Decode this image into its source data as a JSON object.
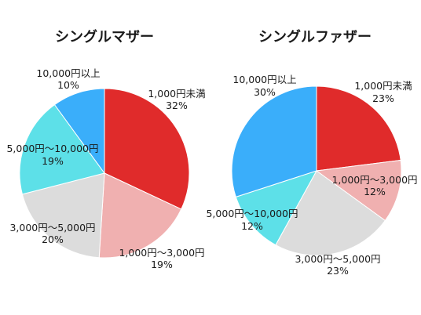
{
  "chart_data": [
    {
      "type": "pie",
      "title": "シングルマザー",
      "categories": [
        "1,000円未満",
        "1,000円〜3,000円",
        "3,000円〜5,000円",
        "5,000円〜10,000円",
        "10,000円以上"
      ],
      "values": [
        32,
        19,
        20,
        19,
        10
      ],
      "value_labels": [
        "32%",
        "19%",
        "20%",
        "19%",
        "10%"
      ],
      "colors": [
        "#e02b2b",
        "#f0b0b0",
        "#dcdcdc",
        "#5de0e8",
        "#3aaefa"
      ]
    },
    {
      "type": "pie",
      "title": "シングルファザー",
      "categories": [
        "1,000円未満",
        "1,000円〜3,000円",
        "3,000円〜5,000円",
        "5,000円〜10,000円",
        "10,000円以上"
      ],
      "values": [
        23,
        12,
        23,
        12,
        30
      ],
      "value_labels": [
        "23%",
        "12%",
        "23%",
        "12%",
        "30%"
      ],
      "colors": [
        "#e02b2b",
        "#f0b0b0",
        "#dcdcdc",
        "#5de0e8",
        "#3aaefa"
      ]
    }
  ]
}
